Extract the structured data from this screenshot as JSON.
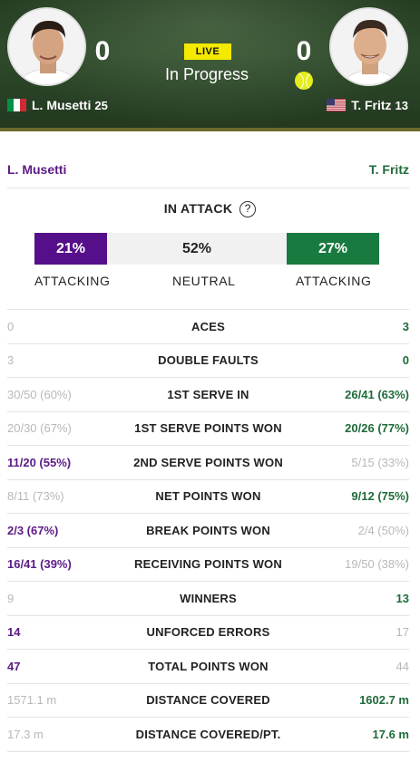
{
  "header": {
    "live_badge": "LIVE",
    "status": "In Progress",
    "player1": {
      "name": "L. Musetti",
      "seed": "25",
      "score": "0",
      "country": "Italy"
    },
    "player2": {
      "name": "T. Fritz",
      "seed": "13",
      "score": "0",
      "country": "USA",
      "serving": true
    }
  },
  "names": {
    "player1": "L. Musetti",
    "player2": "T. Fritz"
  },
  "attack": {
    "title": "IN ATTACK",
    "help_icon": "?",
    "player1_pct": "21%",
    "neutral_pct": "52%",
    "player2_pct": "27%",
    "player1_label": "ATTACKING",
    "neutral_label": "NEUTRAL",
    "player2_label": "ATTACKING"
  },
  "stats": [
    {
      "label": "ACES",
      "p1": "0",
      "p2": "3",
      "leader": "p2"
    },
    {
      "label": "DOUBLE FAULTS",
      "p1": "3",
      "p2": "0",
      "leader": "p2"
    },
    {
      "label": "1ST SERVE IN",
      "p1": "30/50 (60%)",
      "p2": "26/41 (63%)",
      "leader": "p2"
    },
    {
      "label": "1ST SERVE POINTS WON",
      "p1": "20/30 (67%)",
      "p2": "20/26 (77%)",
      "leader": "p2"
    },
    {
      "label": "2ND SERVE POINTS WON",
      "p1": "11/20 (55%)",
      "p2": "5/15 (33%)",
      "leader": "p1"
    },
    {
      "label": "NET POINTS WON",
      "p1": "8/11 (73%)",
      "p2": "9/12 (75%)",
      "leader": "p2"
    },
    {
      "label": "BREAK POINTS WON",
      "p1": "2/3 (67%)",
      "p2": "2/4 (50%)",
      "leader": "p1"
    },
    {
      "label": "RECEIVING POINTS WON",
      "p1": "16/41 (39%)",
      "p2": "19/50 (38%)",
      "leader": "p1"
    },
    {
      "label": "WINNERS",
      "p1": "9",
      "p2": "13",
      "leader": "p2"
    },
    {
      "label": "UNFORCED ERRORS",
      "p1": "14",
      "p2": "17",
      "leader": "p1"
    },
    {
      "label": "TOTAL POINTS WON",
      "p1": "47",
      "p2": "44",
      "leader": "p1"
    },
    {
      "label": "DISTANCE COVERED",
      "p1": "1571.1 m",
      "p2": "1602.7 m",
      "leader": "p2"
    },
    {
      "label": "DISTANCE COVERED/PT.",
      "p1": "17.3 m",
      "p2": "17.6 m",
      "leader": "p2"
    }
  ],
  "colors": {
    "player1": "#5b1a86",
    "player1_bar": "#560f8a",
    "player2": "#1f6b3a",
    "player2_bar": "#197a3f",
    "live_badge": "#f5e900",
    "header_bg": "#2f4a2b"
  },
  "icons": [
    "player1-photo",
    "player2-photo",
    "flag-italy-icon",
    "flag-usa-icon",
    "tennis-ball-serving-icon",
    "help-question-icon"
  ]
}
